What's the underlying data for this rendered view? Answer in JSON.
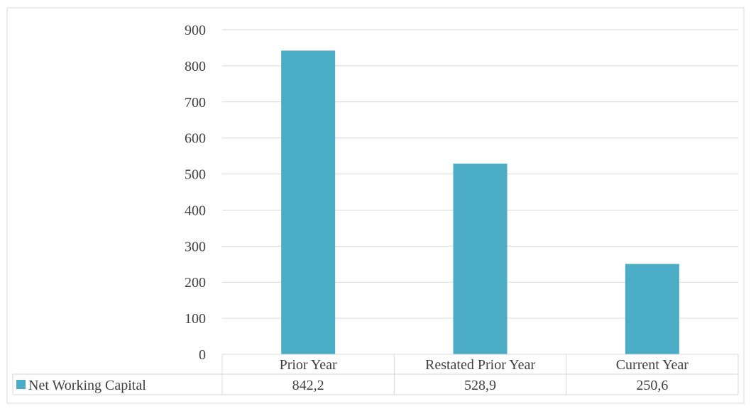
{
  "colors": {
    "bar": "#4BACC6",
    "grid": "#D9D9D9",
    "text": "#404040",
    "border": "#D9D9D9"
  },
  "chart_data": {
    "type": "bar",
    "categories": [
      "Prior Year",
      "Restated Prior Year",
      "Current Year"
    ],
    "series": [
      {
        "name": "Net Working Capital",
        "values": [
          842.2,
          528.9,
          250.6
        ],
        "value_labels": [
          "842,2",
          "528,9",
          "250,6"
        ]
      }
    ],
    "yticks": [
      "0",
      "100",
      "200",
      "300",
      "400",
      "500",
      "600",
      "700",
      "800",
      "900"
    ],
    "ylim": [
      0,
      900
    ],
    "grid": true,
    "legend": "data-table"
  }
}
